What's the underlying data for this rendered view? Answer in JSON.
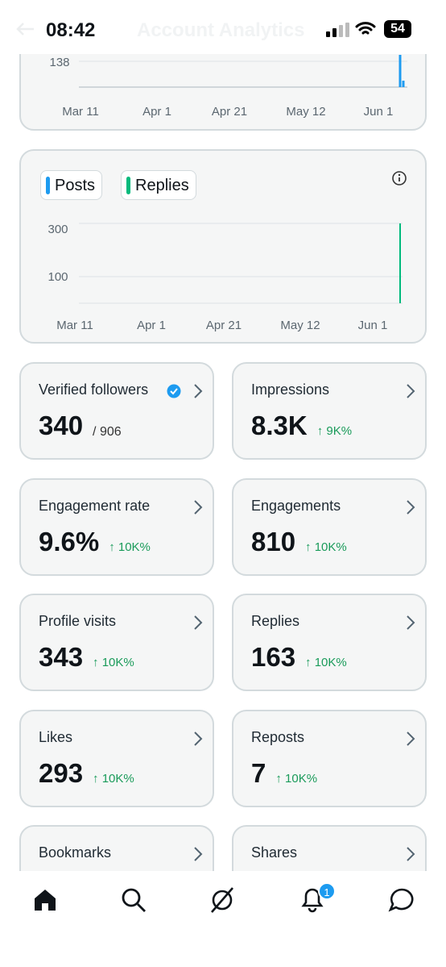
{
  "status_bar": {
    "time": "08:42",
    "battery": "54"
  },
  "header": {
    "title": "Account Analytics"
  },
  "top_chart": {
    "ytick": "138",
    "xticks": [
      "Mar 11",
      "Apr 1",
      "Apr 21",
      "May 12",
      "Jun 1"
    ]
  },
  "activity_chart": {
    "legend": [
      "Posts",
      "Replies"
    ],
    "yticks": [
      "300",
      "100"
    ],
    "xticks": [
      "Mar 11",
      "Apr 1",
      "Apr 21",
      "May 12",
      "Jun 1"
    ]
  },
  "cards": [
    {
      "label": "Verified followers",
      "value": "340",
      "secondary": "/ 906"
    },
    {
      "label": "Impressions",
      "value": "8.3K",
      "change": "↑ 9K%"
    },
    {
      "label": "Engagement rate",
      "value": "9.6%",
      "change": "↑ 10K%"
    },
    {
      "label": "Engagements",
      "value": "810",
      "change": "↑ 10K%"
    },
    {
      "label": "Profile visits",
      "value": "343",
      "change": "↑ 10K%"
    },
    {
      "label": "Replies",
      "value": "163",
      "change": "↑ 10K%"
    },
    {
      "label": "Likes",
      "value": "293",
      "change": "↑ 10K%"
    },
    {
      "label": "Reposts",
      "value": "7",
      "change": "↑ 10K%"
    },
    {
      "label": "Bookmarks"
    },
    {
      "label": "Shares"
    }
  ],
  "nav": {
    "badge": "1"
  }
}
